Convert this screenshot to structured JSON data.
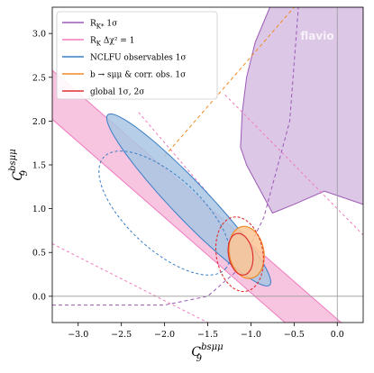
{
  "chart_data": {
    "type": "contour",
    "xlabel_base": "C",
    "xlabel_sub": "9",
    "xlabel_sup": "bsμμ",
    "ylabel_base": "C",
    "ylabel_sub": "9",
    "ylabel_sup": "bsμμ",
    "xlim": [
      -3.3,
      0.3
    ],
    "ylim": [
      -0.3,
      3.3
    ],
    "xticks": [
      "−3.0",
      "−2.5",
      "−2.0",
      "−1.5",
      "−1.0",
      "−0.5",
      "0.0"
    ],
    "yticks": [
      "0.0",
      "0.5",
      "1.0",
      "1.5",
      "2.0",
      "2.5",
      "3.0"
    ],
    "xtick_values": [
      -3.0,
      -2.5,
      -2.0,
      -1.5,
      -1.0,
      -0.5,
      0.0
    ],
    "ytick_values": [
      0.0,
      0.5,
      1.0,
      1.5,
      2.0,
      2.5,
      3.0
    ],
    "watermark": "flavio",
    "legend_position": "top-left",
    "legend": [
      {
        "label": "R_{K*} 1σ",
        "color": "#9b59b6"
      },
      {
        "label": "R_K Δχ² = 1",
        "color": "#f07ac0"
      },
      {
        "label": "NCLFU observables 1σ",
        "color": "#3a7ec4"
      },
      {
        "label": "b → sμμ & corr. obs. 1σ",
        "color": "#f08a24"
      },
      {
        "label": "global 1σ, 2σ",
        "color": "#e03030"
      }
    ],
    "legend_display": [
      {
        "main": "R",
        "sub": "K*",
        "rest": " 1σ"
      },
      {
        "main": "R",
        "sub": "K",
        "rest": " Δχ² = 1"
      },
      {
        "main": "NCLFU observables 1σ",
        "sub": "",
        "rest": ""
      },
      {
        "main": "b → sμμ & corr. obs. 1σ",
        "sub": "",
        "rest": ""
      },
      {
        "main": "global 1σ, 2σ",
        "sub": "",
        "rest": ""
      }
    ],
    "regions": {
      "rkstar_1sigma": {
        "color": "#9b59b6",
        "fill": "#d7bde2",
        "type": "filled-region",
        "points": [
          [
            -0.78,
            3.3
          ],
          [
            -0.45,
            3.3
          ],
          [
            -0.1,
            3.3
          ],
          [
            0.3,
            3.3
          ],
          [
            0.3,
            1.05
          ],
          [
            -0.15,
            1.2
          ],
          [
            -0.5,
            1.05
          ],
          [
            -0.75,
            0.95
          ],
          [
            -1.05,
            1.5
          ],
          [
            -1.12,
            1.7
          ],
          [
            -1.1,
            2.1
          ],
          [
            -1.05,
            2.5
          ],
          [
            -0.95,
            2.9
          ]
        ]
      },
      "rk_band": {
        "color": "#f07ac0",
        "fill": "#f5b7d8",
        "center_line": [
          [
            -3.3,
            2.3
          ],
          [
            0.3,
            -0.8
          ]
        ],
        "half_width_y": 0.28
      },
      "nclfu_1sigma": {
        "color": "#3a7ec4",
        "fill": "#a9c6e3",
        "center": [
          -1.72,
          1.1
        ],
        "semi_axes": [
          1.35,
          0.21
        ],
        "angle_deg": -46
      },
      "nclfu_dashed": {
        "color": "#3a7ec4",
        "center": [
          -2.0,
          0.95
        ],
        "semi_axes": [
          0.95,
          0.42
        ],
        "angle_deg": -42
      },
      "bsmumu_1sigma": {
        "color": "#f08a24",
        "fill": "#fbc595",
        "center": [
          -1.05,
          0.5
        ],
        "semi_axes": [
          0.3,
          0.2
        ],
        "angle_deg": -80
      },
      "global_1sigma": {
        "color": "#e03030",
        "center": [
          -1.12,
          0.48
        ],
        "semi_axes": [
          0.24,
          0.14
        ],
        "angle_deg": -80
      },
      "global_2sigma": {
        "color": "#e03030",
        "center": [
          -1.13,
          0.48
        ],
        "semi_axes": [
          0.43,
          0.27
        ],
        "angle_deg": -80
      },
      "rkstar_dashed": {
        "color": "#9b59b6",
        "points": [
          [
            -3.3,
            -0.1
          ],
          [
            -2.0,
            -0.1
          ],
          [
            -1.5,
            0.0
          ],
          [
            -1.15,
            0.3
          ],
          [
            -0.85,
            0.9
          ],
          [
            -0.55,
            2.0
          ],
          [
            -0.45,
            3.3
          ]
        ]
      },
      "rk_dashed_lines": {
        "color": "#f07ac0",
        "lines": [
          [
            [
              -3.3,
              0.6
            ],
            [
              -1.5,
              -0.3
            ]
          ],
          [
            [
              -2.3,
              2.1
            ],
            [
              -1.0,
              0.6
            ]
          ],
          [
            [
              -1.3,
              2.3
            ],
            [
              0.3,
              0.7
            ]
          ]
        ]
      },
      "orange_dashed": {
        "color": "#f08a24",
        "points": [
          [
            -2.0,
            1.6
          ],
          [
            -0.5,
            3.3
          ]
        ]
      }
    },
    "reference_lines": {
      "x": 0.0,
      "y": 0.0,
      "color": "#999999"
    }
  }
}
